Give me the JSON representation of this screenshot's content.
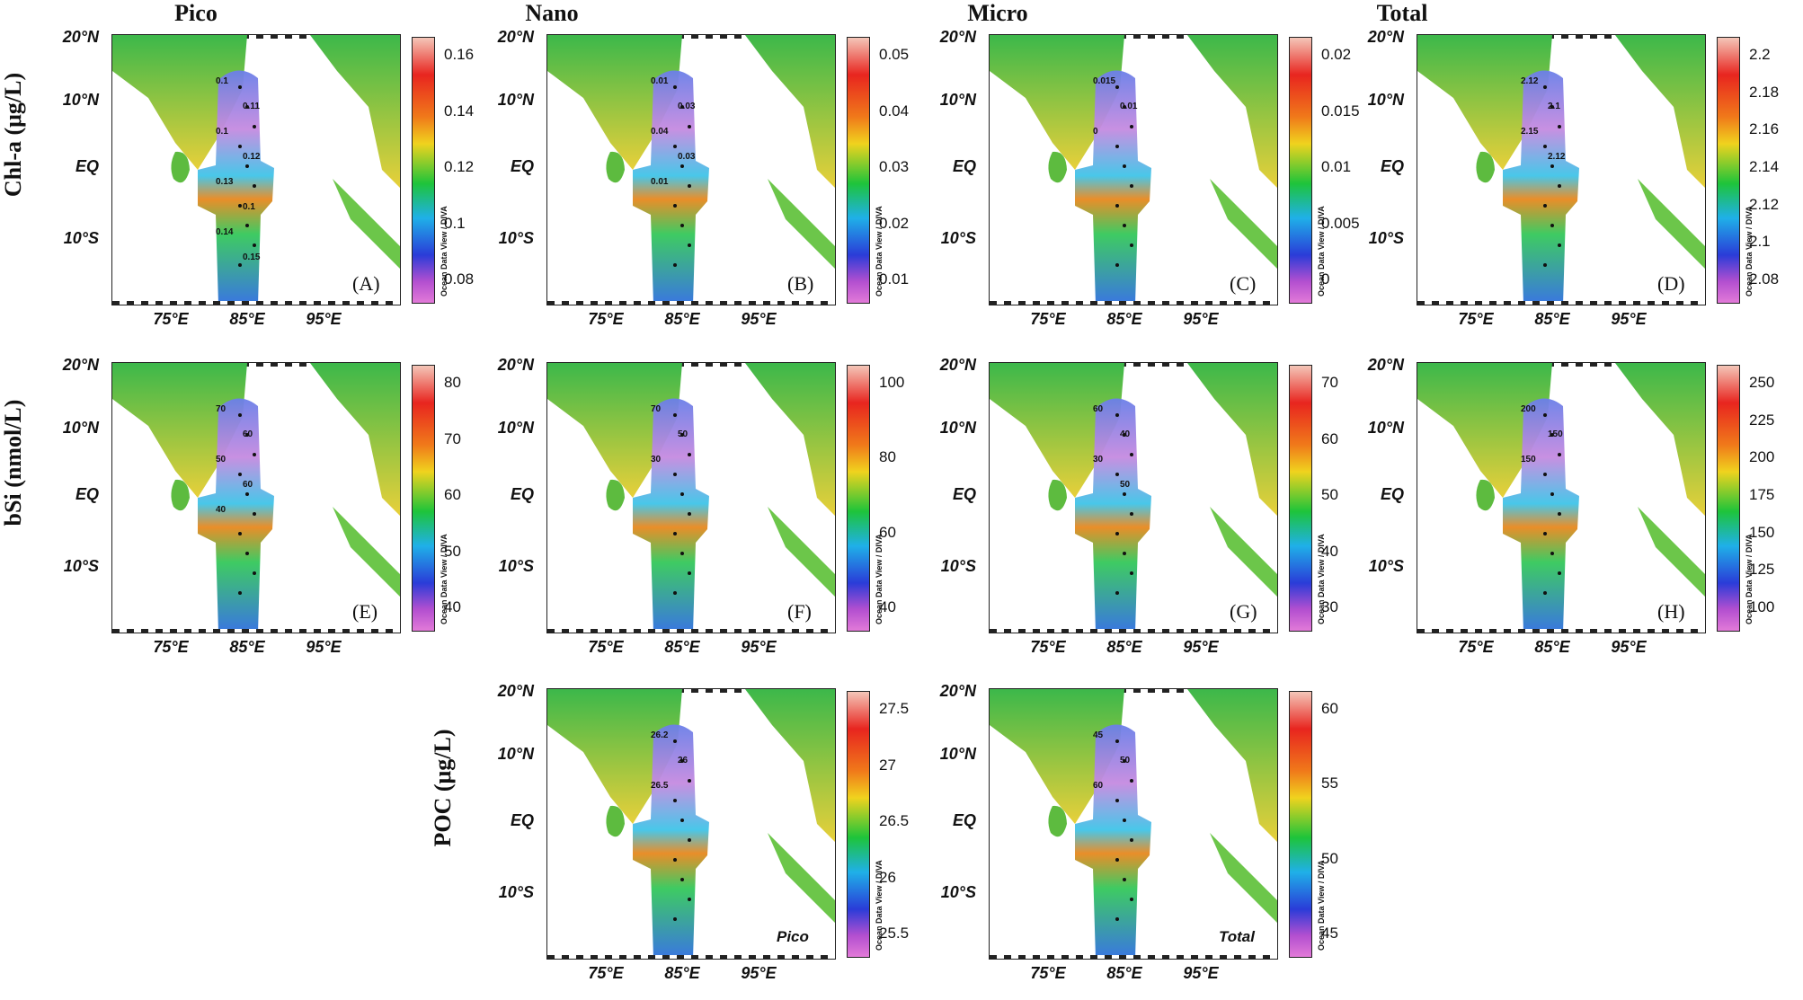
{
  "columns": [
    "Pico",
    "Nano",
    "Micro",
    "Total"
  ],
  "rows": [
    "Chl-a (μg/L)",
    "bSi (nmol/L)",
    "POC (μg/L)"
  ],
  "credit": "Ocean Data View / DIVA",
  "axes": {
    "lat_labels": [
      "20°N",
      "10°N",
      "EQ",
      "10°S"
    ],
    "lon_labels": [
      "75°E",
      "85°E",
      "95°E"
    ]
  },
  "panels": [
    {
      "id": "A",
      "variable": "Chl-a",
      "fraction": "Pico",
      "label": "(A)",
      "colorbar": [
        "0.16",
        "0.14",
        "0.12",
        "0.1",
        "0.08"
      ],
      "palette": "odv",
      "contour_labels": [
        "0.1",
        "0.11",
        "0.1",
        "0.12",
        "0.13",
        "0.1",
        "0.14",
        "0.15"
      ]
    },
    {
      "id": "B",
      "variable": "Chl-a",
      "fraction": "Nano",
      "label": "(B)",
      "colorbar": [
        "0.05",
        "0.04",
        "0.03",
        "0.02",
        "0.01"
      ],
      "palette": "odv",
      "contour_labels": [
        "0.01",
        "0.03",
        "0.04",
        "0.03",
        "0.01"
      ]
    },
    {
      "id": "C",
      "variable": "Chl-a",
      "fraction": "Micro",
      "label": "(C)",
      "colorbar": [
        "0.02",
        "0.015",
        "0.01",
        "0.005",
        "0"
      ],
      "palette": "odv",
      "contour_labels": [
        "0.015",
        "0.01",
        "0"
      ]
    },
    {
      "id": "D",
      "variable": "Chl-a",
      "fraction": "Total",
      "label": "(D)",
      "colorbar": [
        "2.2",
        "2.18",
        "2.16",
        "2.14",
        "2.12",
        "2.1",
        "2.08"
      ],
      "palette": "odv",
      "contour_labels": [
        "2.12",
        "2.1",
        "2.15",
        "2.12"
      ]
    },
    {
      "id": "E",
      "variable": "bSi",
      "fraction": "Pico",
      "label": "(E)",
      "colorbar": [
        "80",
        "70",
        "60",
        "50",
        "40"
      ],
      "palette": "odv",
      "contour_labels": [
        "70",
        "60",
        "50",
        "60",
        "40"
      ]
    },
    {
      "id": "F",
      "variable": "bSi",
      "fraction": "Nano",
      "label": "(F)",
      "colorbar": [
        "100",
        "80",
        "60",
        "40"
      ],
      "palette": "odv",
      "contour_labels": [
        "70",
        "50",
        "30"
      ]
    },
    {
      "id": "G",
      "variable": "bSi",
      "fraction": "Micro",
      "label": "(G)",
      "colorbar": [
        "70",
        "60",
        "50",
        "40",
        "30"
      ],
      "palette": "odv",
      "contour_labels": [
        "60",
        "40",
        "30",
        "50"
      ]
    },
    {
      "id": "H",
      "variable": "bSi",
      "fraction": "Total",
      "label": "(H)",
      "colorbar": [
        "250",
        "225",
        "200",
        "175",
        "150",
        "125",
        "100"
      ],
      "palette": "odv",
      "contour_labels": [
        "200",
        "150",
        "150"
      ]
    },
    {
      "id": "I",
      "variable": "POC",
      "fraction": "Pico",
      "label": "Pico",
      "colorbar": [
        "27.5",
        "27",
        "26.5",
        "26",
        "25.5"
      ],
      "palette": "odv",
      "contour_labels": [
        "26.2",
        "26",
        "26.5"
      ]
    },
    {
      "id": "J",
      "variable": "POC",
      "fraction": "Total",
      "label": "Total",
      "colorbar": [
        "60",
        "55",
        "50",
        "45"
      ],
      "palette": "odv",
      "contour_labels": [
        "45",
        "50",
        "60"
      ]
    }
  ]
}
